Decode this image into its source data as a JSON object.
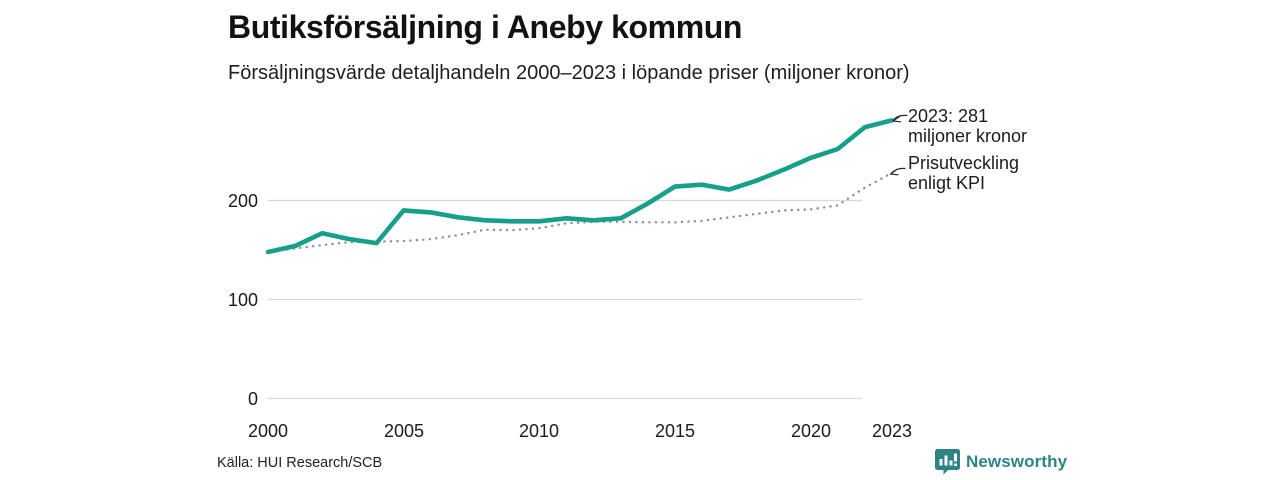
{
  "header": {
    "title": "Butiksförsäljning i Aneby kommun",
    "subtitle": "Försäljningsvärde detaljhandeln 2000–2023 i löpande priser (miljoner kronor)"
  },
  "chart_data": {
    "type": "line",
    "x": [
      2000,
      2001,
      2002,
      2003,
      2004,
      2005,
      2006,
      2007,
      2008,
      2009,
      2010,
      2011,
      2012,
      2013,
      2014,
      2015,
      2016,
      2017,
      2018,
      2019,
      2020,
      2021,
      2022,
      2023
    ],
    "series": [
      {
        "name": "Försäljningsvärde detaljhandeln (löpande priser)",
        "style": "solid",
        "color": "#16a08c",
        "values": [
          148,
          154,
          167,
          161,
          157,
          190,
          188,
          183,
          180,
          179,
          179,
          182,
          180,
          182,
          197,
          214,
          216,
          211,
          220,
          231,
          243,
          252,
          274,
          281
        ]
      },
      {
        "name": "Prisutveckling enligt KPI",
        "style": "dotted",
        "color": "#8d8d8d",
        "values": [
          148,
          151.5,
          155,
          158,
          158.5,
          159,
          161,
          165,
          170.5,
          170,
          172,
          177,
          178.5,
          178.5,
          178,
          178,
          179.5,
          183,
          186.5,
          190,
          191,
          195,
          213,
          228
        ]
      }
    ],
    "title": "Butiksförsäljning i Aneby kommun",
    "subtitle": "Försäljningsvärde detaljhandeln 2000–2023 i löpande priser (miljoner kronor)",
    "xlabel": "",
    "ylabel": "",
    "ylim": [
      0,
      300
    ],
    "y_ticks": [
      0,
      100,
      200
    ],
    "x_ticks": [
      2000,
      2005,
      2010,
      2015,
      2020,
      2023
    ],
    "grid": "horizontal",
    "legend": "none",
    "annotations": [
      {
        "target": "2023 value",
        "text": "2023: 281 miljoner kronor"
      },
      {
        "target": "KPI line end",
        "text": "Prisutveckling enligt KPI"
      }
    ]
  },
  "annotations": {
    "latest": {
      "line1": "2023: 281",
      "line2": "miljoner kronor"
    },
    "kpi": {
      "line1": "Prisutveckling",
      "line2": "enligt KPI"
    }
  },
  "footer": {
    "source": "Källa: HUI Research/SCB",
    "brand": "Newsworthy"
  },
  "colors": {
    "series_main": "#16a08c",
    "series_kpi": "#8d8d8d",
    "gridline": "#d9d9d9",
    "brand_teal": "#2d8386",
    "text": "#1b1b1b"
  }
}
